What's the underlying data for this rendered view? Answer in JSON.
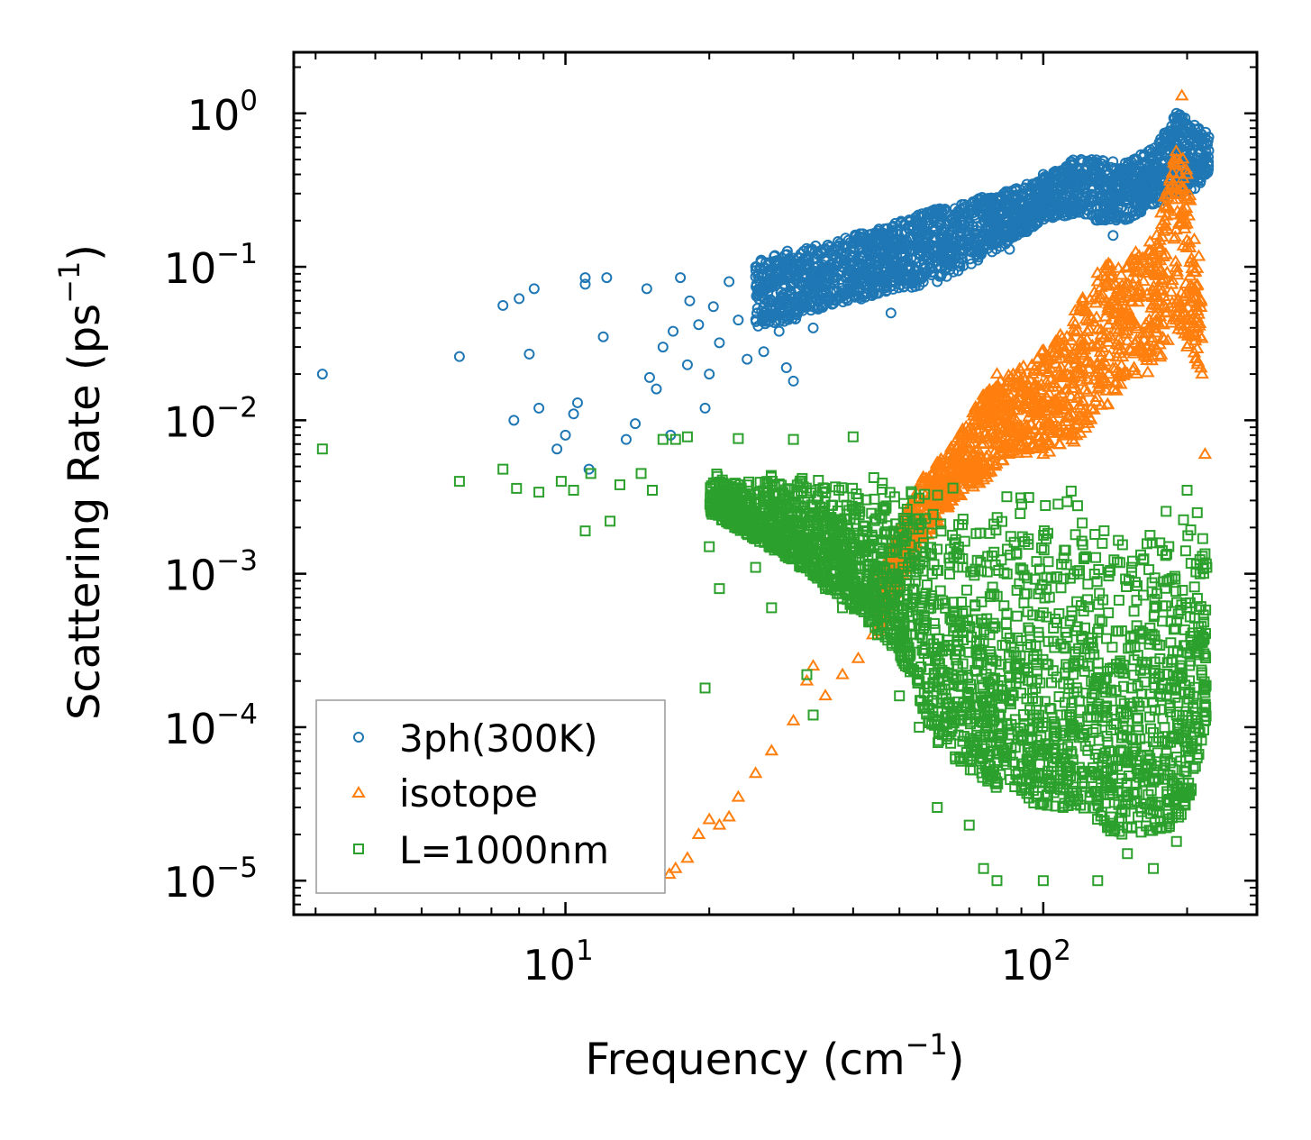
{
  "chart_data": {
    "type": "scatter",
    "title": "",
    "xlabel": {
      "base": "Frequency (cm",
      "sup": "−1",
      "tail": ")"
    },
    "ylabel": {
      "base": "Scattering Rate (ps",
      "sup": "−1",
      "tail": ")"
    },
    "xscale": "log",
    "yscale": "log",
    "xlim": [
      2.7,
      280
    ],
    "ylim": [
      6e-06,
      2.5
    ],
    "x_ticks": [
      {
        "value": 10,
        "base": "10",
        "exp": "1"
      },
      {
        "value": 100,
        "base": "10",
        "exp": "2"
      }
    ],
    "y_ticks": [
      {
        "value": 1,
        "base": "10",
        "exp": "0"
      },
      {
        "value": 0.1,
        "base": "10",
        "exp": "−1"
      },
      {
        "value": 0.01,
        "base": "10",
        "exp": "−2"
      },
      {
        "value": 0.001,
        "base": "10",
        "exp": "−3"
      },
      {
        "value": 0.0001,
        "base": "10",
        "exp": "−4"
      },
      {
        "value": 1e-05,
        "base": "10",
        "exp": "−5"
      }
    ],
    "legend_position": "bottom-left",
    "series": [
      {
        "name": "3ph(300K)",
        "marker": "circle",
        "color": "#1f77b4",
        "points": [
          [
            3.1,
            0.02
          ],
          [
            6.0,
            0.026
          ],
          [
            7.4,
            0.056
          ],
          [
            7.8,
            0.01
          ],
          [
            8.0,
            0.062
          ],
          [
            8.4,
            0.027
          ],
          [
            8.6,
            0.072
          ],
          [
            8.8,
            0.012
          ],
          [
            9.6,
            0.0065
          ],
          [
            10.0,
            0.008
          ],
          [
            10.4,
            0.011
          ],
          [
            10.6,
            0.013
          ],
          [
            11.0,
            0.077
          ],
          [
            11.0,
            0.085
          ],
          [
            11.2,
            0.0048
          ],
          [
            12.0,
            0.035
          ],
          [
            12.2,
            0.085
          ],
          [
            13.4,
            0.0075
          ],
          [
            14.0,
            0.0095
          ],
          [
            14.8,
            0.072
          ],
          [
            15.0,
            0.019
          ],
          [
            15.5,
            0.016
          ],
          [
            16.0,
            0.03
          ],
          [
            16.6,
            0.008
          ],
          [
            16.8,
            0.038
          ],
          [
            17.4,
            0.085
          ],
          [
            18.0,
            0.023
          ],
          [
            18.2,
            0.06
          ],
          [
            19.0,
            0.042
          ],
          [
            19.6,
            0.012
          ],
          [
            20.0,
            0.02
          ],
          [
            20.4,
            0.055
          ],
          [
            21.0,
            0.032
          ],
          [
            22.0,
            0.08
          ],
          [
            23.0,
            0.045
          ],
          [
            24.0,
            0.025
          ],
          [
            25.0,
            0.1
          ],
          [
            26.0,
            0.028
          ],
          [
            27.0,
            0.06
          ],
          [
            28.0,
            0.038
          ],
          [
            29.0,
            0.022
          ],
          [
            30.0,
            0.018
          ],
          [
            31.0,
            0.1
          ],
          [
            31.8,
            0.065
          ],
          [
            33.0,
            0.04
          ],
          [
            34.0,
            0.075
          ],
          [
            38.0,
            0.07
          ],
          [
            42.0,
            0.09
          ],
          [
            48.0,
            0.05
          ],
          [
            55.0,
            0.12
          ],
          [
            60.0,
            0.08
          ],
          [
            75.0,
            0.2
          ],
          [
            85.0,
            0.13
          ],
          [
            95.0,
            0.22
          ],
          [
            100.0,
            0.4
          ],
          [
            120.0,
            0.5
          ],
          [
            140.0,
            0.16
          ],
          [
            160.0,
            0.35
          ],
          [
            190.0,
            1.0
          ],
          [
            200.0,
            0.85
          ],
          [
            215.0,
            0.72
          ],
          [
            222.0,
            0.7
          ]
        ],
        "band": [
          [
            25,
            0.04,
            0.11
          ],
          [
            30,
            0.045,
            0.13
          ],
          [
            35,
            0.055,
            0.14
          ],
          [
            40,
            0.06,
            0.16
          ],
          [
            45,
            0.065,
            0.18
          ],
          [
            50,
            0.07,
            0.2
          ],
          [
            60,
            0.08,
            0.24
          ],
          [
            70,
            0.1,
            0.27
          ],
          [
            80,
            0.13,
            0.3
          ],
          [
            90,
            0.16,
            0.34
          ],
          [
            100,
            0.2,
            0.38
          ],
          [
            115,
            0.22,
            0.5
          ],
          [
            130,
            0.2,
            0.5
          ],
          [
            150,
            0.2,
            0.48
          ],
          [
            170,
            0.25,
            0.6
          ],
          [
            190,
            0.3,
            1.0
          ],
          [
            205,
            0.3,
            0.95
          ],
          [
            222,
            0.4,
            0.75
          ]
        ]
      },
      {
        "name": "isotope",
        "marker": "triangle",
        "color": "#ff7f0e",
        "points": [
          [
            16.5,
            1.1e-05
          ],
          [
            17.0,
            1.2e-05
          ],
          [
            18.0,
            1.4e-05
          ],
          [
            19.0,
            2e-05
          ],
          [
            20.0,
            2.5e-05
          ],
          [
            21.0,
            2.3e-05
          ],
          [
            22.0,
            2.6e-05
          ],
          [
            23.0,
            3.5e-05
          ],
          [
            25.0,
            5e-05
          ],
          [
            27.0,
            7e-05
          ],
          [
            30.0,
            0.00011
          ],
          [
            32.0,
            0.0002
          ],
          [
            33.0,
            0.00025
          ],
          [
            35.0,
            0.00016
          ],
          [
            38.0,
            0.00022
          ],
          [
            41.0,
            0.00028
          ],
          [
            44.0,
            0.0004
          ],
          [
            47.0,
            0.0007
          ],
          [
            50.0,
            0.0009
          ],
          [
            55.0,
            0.002
          ],
          [
            58.0,
            0.003
          ],
          [
            60.0,
            0.005
          ],
          [
            65.0,
            0.006
          ],
          [
            70.0,
            0.004
          ],
          [
            75.0,
            0.01
          ],
          [
            80.0,
            0.02
          ],
          [
            85.0,
            0.012
          ],
          [
            90.0,
            0.008
          ],
          [
            95.0,
            0.02
          ],
          [
            100.0,
            0.006
          ],
          [
            110.0,
            0.03
          ],
          [
            120.0,
            0.01
          ],
          [
            130.0,
            0.08
          ],
          [
            140.0,
            0.05
          ],
          [
            150.0,
            0.1
          ],
          [
            160.0,
            0.03
          ],
          [
            170.0,
            0.1
          ],
          [
            180.0,
            0.05
          ],
          [
            190.0,
            0.5
          ],
          [
            195.0,
            1.3
          ],
          [
            200.0,
            0.4
          ],
          [
            210.0,
            0.04
          ],
          [
            215.0,
            0.02
          ],
          [
            218.0,
            0.006
          ]
        ],
        "band": [
          [
            45,
            0.0004,
            0.0009
          ],
          [
            55,
            0.0015,
            0.004
          ],
          [
            65,
            0.003,
            0.007
          ],
          [
            75,
            0.004,
            0.015
          ],
          [
            85,
            0.006,
            0.02
          ],
          [
            100,
            0.006,
            0.03
          ],
          [
            115,
            0.007,
            0.05
          ],
          [
            130,
            0.01,
            0.1
          ],
          [
            150,
            0.02,
            0.12
          ],
          [
            170,
            0.02,
            0.15
          ],
          [
            190,
            0.04,
            0.6
          ],
          [
            200,
            0.03,
            0.5
          ],
          [
            215,
            0.02,
            0.08
          ]
        ]
      },
      {
        "name": "L=1000nm",
        "marker": "square",
        "color": "#2ca02c",
        "points": [
          [
            3.1,
            0.0065
          ],
          [
            6.0,
            0.004
          ],
          [
            7.4,
            0.0048
          ],
          [
            7.9,
            0.0036
          ],
          [
            8.8,
            0.0034
          ],
          [
            9.8,
            0.004
          ],
          [
            10.4,
            0.0035
          ],
          [
            11.0,
            0.0019
          ],
          [
            11.3,
            0.0045
          ],
          [
            12.4,
            0.0022
          ],
          [
            13.0,
            0.0038
          ],
          [
            14.4,
            0.0045
          ],
          [
            15.2,
            0.0035
          ],
          [
            16.0,
            0.0075
          ],
          [
            17.0,
            0.0075
          ],
          [
            18.0,
            0.0078
          ],
          [
            19.6,
            0.00018
          ],
          [
            20.0,
            0.0015
          ],
          [
            21.0,
            0.0008
          ],
          [
            22.0,
            0.0028
          ],
          [
            23.0,
            0.0076
          ],
          [
            25.0,
            0.0011
          ],
          [
            27.0,
            0.0006
          ],
          [
            29.0,
            0.0015
          ],
          [
            30.0,
            0.0075
          ],
          [
            32.0,
            0.00022
          ],
          [
            33.0,
            0.00012
          ],
          [
            35.0,
            0.0008
          ],
          [
            38.0,
            0.0006
          ],
          [
            40.0,
            0.0078
          ],
          [
            45.0,
            0.0004
          ],
          [
            50.0,
            0.00016
          ],
          [
            55.0,
            0.0001
          ],
          [
            60.0,
            3e-05
          ],
          [
            70.0,
            2.3e-05
          ],
          [
            75.0,
            1.2e-05
          ],
          [
            80.0,
            1e-05
          ],
          [
            90.0,
            4e-05
          ],
          [
            100.0,
            1e-05
          ],
          [
            110.0,
            3e-05
          ],
          [
            130.0,
            1e-05
          ],
          [
            150.0,
            1.5e-05
          ],
          [
            170.0,
            1.2e-05
          ],
          [
            190.0,
            1.8e-05
          ],
          [
            200.0,
            0.0035
          ],
          [
            210.0,
            0.0025
          ],
          [
            220.0,
            0.0011
          ]
        ],
        "band": [
          [
            20,
            0.0025,
            0.0045
          ],
          [
            30,
            0.0012,
            0.0045
          ],
          [
            40,
            0.0006,
            0.0045
          ],
          [
            50,
            0.0003,
            0.004
          ],
          [
            60,
            8e-05,
            0.004
          ],
          [
            70,
            5e-05,
            0.004
          ],
          [
            80,
            4e-05,
            0.004
          ],
          [
            100,
            3e-05,
            0.004
          ],
          [
            120,
            3e-05,
            0.004
          ],
          [
            140,
            2e-05,
            0.003
          ],
          [
            160,
            2e-05,
            0.003
          ],
          [
            180,
            2e-05,
            0.003
          ],
          [
            200,
            3e-05,
            0.003
          ],
          [
            220,
            0.0001,
            0.002
          ]
        ]
      }
    ]
  }
}
